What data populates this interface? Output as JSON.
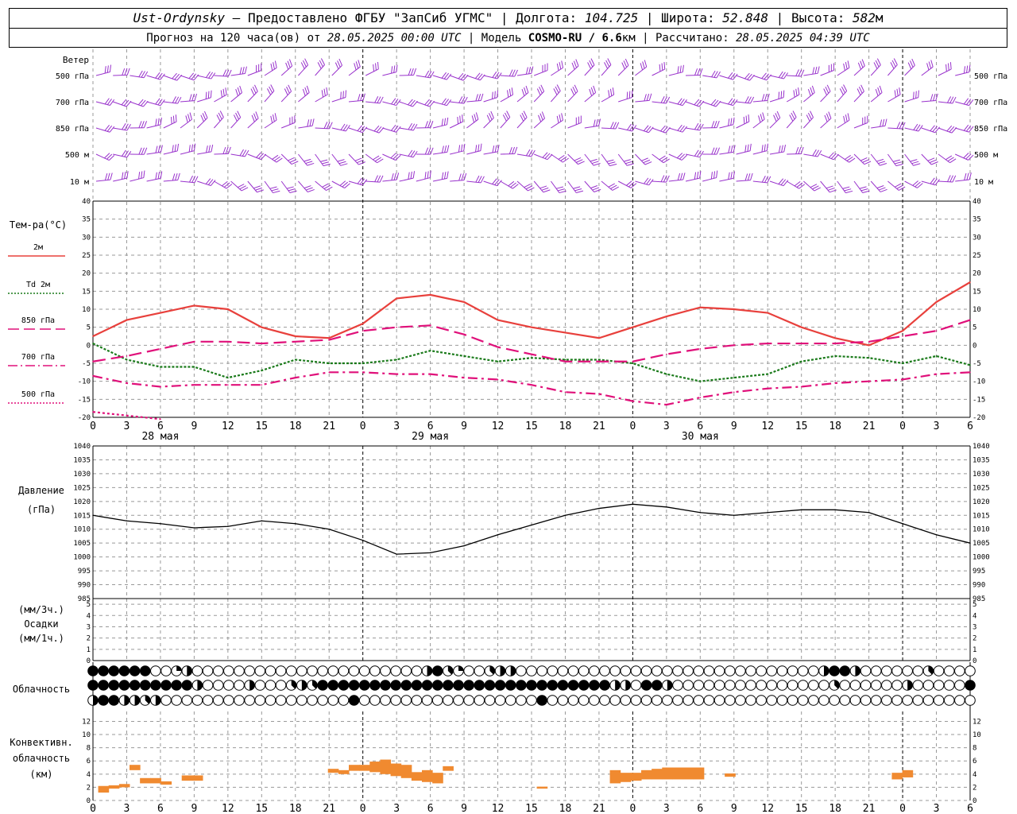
{
  "header": {
    "station": "Ust-Ordynsky",
    "sep": "—",
    "provider": "Предоставлено ФГБУ \"ЗапСиб УГМС\"",
    "lon_label": "Долгота:",
    "lon_value": "104.725",
    "lat_label": "Широта:",
    "lat_value": "52.848",
    "alt_label": "Высота:",
    "alt_value": "582",
    "alt_unit": "м",
    "forecast_label": "Прогноз на 120 часа(ов) от",
    "forecast_start": "28.05.2025 00:00 UTC",
    "model_label": "Модель",
    "model_name": "COSMO-RU / 6.6",
    "model_unit": "км",
    "computed_label": "Рассчитано:",
    "computed_time": "28.05.2025 04:39 UTC"
  },
  "wind_panel": {
    "title": "Ветер",
    "levels": [
      "500 гПа",
      "700 гПа",
      "850 гПа",
      "500 м",
      "10 м"
    ],
    "color": "#9932cc"
  },
  "temp_panel": {
    "title": "Тем-ра(°С)",
    "legend": [
      {
        "label": "2м",
        "color": "#e8403c",
        "dash": "solid"
      },
      {
        "label": "Td 2м",
        "color": "#1a7a1a",
        "dash": "dotted"
      },
      {
        "label": "850 гПа",
        "color": "#e0107a",
        "dash": "dashed"
      },
      {
        "label": "700 гПа",
        "color": "#e0107a",
        "dash": "dashdot"
      },
      {
        "label": "500 гПа",
        "color": "#e0107a",
        "dash": "dotted"
      }
    ],
    "yticks": [
      "40",
      "35",
      "30",
      "25",
      "20",
      "15",
      "10",
      "5",
      "0",
      "-5",
      "-10",
      "-15",
      "-20"
    ]
  },
  "time_axis": {
    "hours": [
      "0",
      "3",
      "6",
      "9",
      "12",
      "15",
      "18",
      "21",
      "0",
      "3",
      "6",
      "9",
      "12",
      "15",
      "18",
      "21",
      "0",
      "3",
      "6",
      "9",
      "12",
      "15",
      "18",
      "21",
      "0",
      "3",
      "6"
    ],
    "days": [
      "28 мая",
      "29 мая",
      "30 мая"
    ]
  },
  "pressure_panel": {
    "title": "Давление",
    "unit": "(гПа)",
    "yticks": [
      "1040",
      "1035",
      "1030",
      "1025",
      "1020",
      "1015",
      "1010",
      "1005",
      "1000",
      "995",
      "990",
      "985"
    ]
  },
  "precip_panel": {
    "unit1": "(мм/3ч.)",
    "title": "Осадки",
    "unit2": "(мм/1ч.)",
    "yticks": [
      "5",
      "4",
      "3",
      "2",
      "1",
      "0"
    ]
  },
  "cloud_panel": {
    "title": "Облачность"
  },
  "conv_panel": {
    "title1": "Конвективн.",
    "title2": "облачность",
    "unit": "(км)",
    "yticks": [
      "12",
      "10",
      "8",
      "6",
      "4",
      "2",
      "0"
    ],
    "color": "#f08a30"
  },
  "chart_data": [
    {
      "type": "line",
      "title": "Тем-ра(°С)",
      "x_hours": [
        0,
        3,
        6,
        9,
        12,
        15,
        18,
        21,
        24,
        27,
        30,
        33,
        36,
        39,
        42,
        45,
        48,
        51,
        54,
        57,
        60,
        63,
        66,
        69,
        72,
        75,
        78
      ],
      "ylim": [
        -20,
        40
      ],
      "series": [
        {
          "name": "2м",
          "values": [
            2.5,
            7,
            9,
            11,
            10,
            5,
            2.5,
            2,
            6,
            13,
            14,
            12,
            7,
            5,
            3.5,
            2,
            5,
            8,
            10.5,
            10,
            9,
            5,
            2,
            0,
            4,
            12,
            17.5
          ]
        },
        {
          "name": "Td 2м",
          "values": [
            0.5,
            -4,
            -6,
            -6,
            -9,
            -7,
            -4,
            -5,
            -5,
            -4,
            -1.5,
            -3,
            -4.5,
            -3.5,
            -4,
            -4,
            -5,
            -8,
            -10,
            -9,
            -8,
            -4.5,
            -3,
            -3.5,
            -5,
            -3,
            -5.5
          ]
        },
        {
          "name": "850 гПа",
          "values": [
            -4.5,
            -3,
            -1,
            1,
            1,
            0.5,
            1,
            1.5,
            4,
            5,
            5.5,
            3,
            -0.5,
            -2.5,
            -4.5,
            -4.5,
            -4.5,
            -2.5,
            -1,
            0,
            0.5,
            0.5,
            0.5,
            1,
            2.5,
            4,
            7
          ]
        },
        {
          "name": "700 гПа",
          "values": [
            -8.5,
            -10.5,
            -11.5,
            -11,
            -11,
            -11,
            -9,
            -7.5,
            -7.5,
            -8,
            -8,
            -9,
            -9.5,
            -11,
            -13,
            -13.5,
            -15.5,
            -16.5,
            -14.5,
            -13,
            -12,
            -11.5,
            -10.5,
            -10,
            -9.5,
            -8,
            -7.5
          ]
        },
        {
          "name": "500 гПа",
          "values": [
            -18.5,
            -19.5,
            -20.5
          ]
        }
      ]
    },
    {
      "type": "line",
      "title": "Давление",
      "ylabel": "гПа",
      "x_hours": [
        0,
        3,
        6,
        9,
        12,
        15,
        18,
        21,
        24,
        27,
        30,
        33,
        36,
        39,
        42,
        45,
        48,
        51,
        54,
        57,
        60,
        63,
        66,
        69,
        72,
        75,
        78
      ],
      "ylim": [
        985,
        1040
      ],
      "series": [
        {
          "name": "Давление",
          "values": [
            1015,
            1013,
            1012,
            1010.5,
            1011,
            1013,
            1012,
            1010,
            1006,
            1001,
            1001.5,
            1004,
            1008,
            1011.5,
            1015,
            1017.5,
            1019,
            1018,
            1016,
            1015,
            1016,
            1017,
            1017,
            1016,
            1012,
            1008,
            1005
          ]
        }
      ]
    },
    {
      "type": "bar",
      "title": "Конвективн. облачность",
      "ylabel": "км",
      "ylim": [
        0,
        13
      ],
      "bars": [
        {
          "x": 1,
          "bottom": 1.2,
          "top": 2.2
        },
        {
          "x": 2,
          "bottom": 1.8,
          "top": 2.3
        },
        {
          "x": 3,
          "bottom": 2.0,
          "top": 2.5
        },
        {
          "x": 4,
          "bottom": 4.6,
          "top": 5.4
        },
        {
          "x": 5,
          "bottom": 2.6,
          "top": 3.4
        },
        {
          "x": 6,
          "bottom": 2.6,
          "top": 3.4
        },
        {
          "x": 7,
          "bottom": 2.4,
          "top": 2.9
        },
        {
          "x": 9,
          "bottom": 3.0,
          "top": 3.8
        },
        {
          "x": 10,
          "bottom": 3.0,
          "top": 3.8
        },
        {
          "x": 23,
          "bottom": 4.2,
          "top": 4.8
        },
        {
          "x": 24,
          "bottom": 4.0,
          "top": 4.6
        },
        {
          "x": 25,
          "bottom": 4.5,
          "top": 5.4
        },
        {
          "x": 26,
          "bottom": 4.5,
          "top": 5.4
        },
        {
          "x": 27,
          "bottom": 4.3,
          "top": 5.9
        },
        {
          "x": 28,
          "bottom": 4.0,
          "top": 6.2
        },
        {
          "x": 29,
          "bottom": 3.7,
          "top": 5.6
        },
        {
          "x": 30,
          "bottom": 3.4,
          "top": 5.4
        },
        {
          "x": 31,
          "bottom": 3.0,
          "top": 4.3
        },
        {
          "x": 32,
          "bottom": 2.8,
          "top": 4.6
        },
        {
          "x": 33,
          "bottom": 2.6,
          "top": 4.2
        },
        {
          "x": 34,
          "bottom": 4.5,
          "top": 5.2
        },
        {
          "x": 43,
          "bottom": 1.8,
          "top": 2.1
        },
        {
          "x": 50,
          "bottom": 2.6,
          "top": 4.6
        },
        {
          "x": 51,
          "bottom": 2.8,
          "top": 4.2
        },
        {
          "x": 52,
          "bottom": 3.0,
          "top": 4.2
        },
        {
          "x": 53,
          "bottom": 3.2,
          "top": 4.6
        },
        {
          "x": 54,
          "bottom": 3.2,
          "top": 4.8
        },
        {
          "x": 55,
          "bottom": 3.2,
          "top": 5.0
        },
        {
          "x": 56,
          "bottom": 3.2,
          "top": 5.0
        },
        {
          "x": 57,
          "bottom": 3.2,
          "top": 5.0
        },
        {
          "x": 58,
          "bottom": 3.2,
          "top": 5.0
        },
        {
          "x": 61,
          "bottom": 3.6,
          "top": 4.1
        },
        {
          "x": 77,
          "bottom": 3.2,
          "top": 4.2
        },
        {
          "x": 78,
          "bottom": 3.5,
          "top": 4.6
        }
      ]
    },
    {
      "type": "table",
      "title": "Облачность",
      "cover_scale": "0–8 oktas",
      "rows": [
        [
          8,
          8,
          8,
          8,
          8,
          8,
          0,
          0,
          2,
          4,
          0,
          0,
          0,
          0,
          0,
          0,
          0,
          0,
          0,
          0,
          0,
          0,
          0,
          0,
          0,
          0,
          0,
          0,
          0,
          0,
          0,
          0,
          4,
          8,
          3,
          2,
          0,
          0,
          3,
          4,
          4,
          0,
          0,
          0,
          0,
          0,
          0,
          0,
          0,
          0,
          0,
          0,
          0,
          0,
          0,
          0,
          0,
          0,
          0,
          0,
          0,
          0,
          0,
          0,
          0,
          0,
          0,
          0,
          0,
          0,
          4,
          8,
          8,
          4,
          0,
          0,
          0,
          0,
          0,
          0,
          3,
          0,
          0
        ],
        [
          8,
          8,
          8,
          8,
          8,
          8,
          8,
          8,
          8,
          8,
          4,
          0,
          0,
          0,
          0,
          4,
          0,
          0,
          0,
          3,
          4,
          3,
          8,
          8,
          8,
          8,
          8,
          8,
          8,
          8,
          8,
          8,
          8,
          8,
          8,
          8,
          8,
          8,
          8,
          8,
          8,
          8,
          8,
          8,
          8,
          8,
          8,
          8,
          8,
          8,
          4,
          4,
          0,
          8,
          8,
          4,
          0,
          0,
          0,
          0,
          0,
          0,
          0,
          0,
          0,
          0,
          0,
          0,
          0,
          0,
          0,
          3,
          0,
          0,
          0,
          0,
          0,
          0,
          4,
          0,
          0,
          0,
          0,
          0,
          8
        ],
        [
          4,
          8,
          8,
          4,
          4,
          3,
          4,
          0,
          0,
          0,
          0,
          0,
          0,
          0,
          0,
          0,
          0,
          0,
          0,
          0,
          0,
          0,
          0,
          0,
          0,
          8,
          0,
          0,
          0,
          0,
          0,
          0,
          0,
          0,
          0,
          0,
          0,
          0,
          0,
          0,
          0,
          0,
          0,
          8,
          0,
          0,
          0,
          0,
          0,
          0,
          0,
          0,
          0,
          0,
          0,
          0,
          0,
          0,
          0,
          0,
          0,
          0,
          0,
          0,
          0,
          0,
          0,
          0,
          0,
          0,
          0,
          0,
          0,
          0,
          0,
          0,
          0,
          0,
          0,
          0,
          0,
          0,
          0,
          0,
          0
        ]
      ]
    }
  ]
}
